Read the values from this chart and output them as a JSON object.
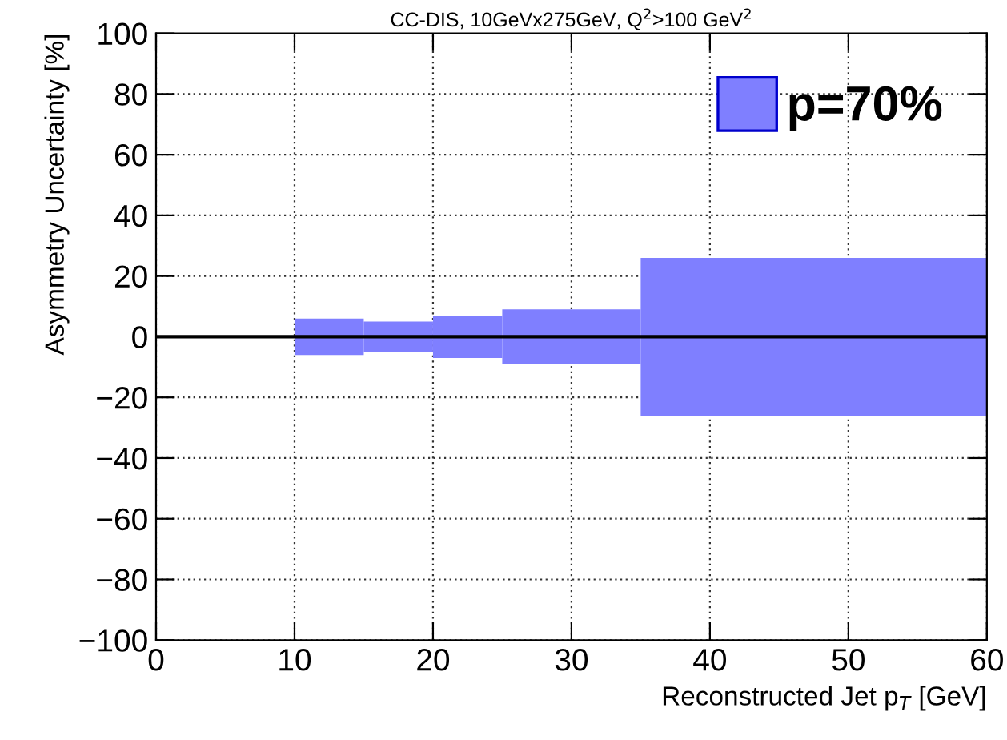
{
  "chart_data": {
    "type": "histogram",
    "title": "CC-DIS, 10GeVx275GeV, Q$^{2}$>100 GeV$^{2}$",
    "xlabel": "Reconstructed Jet p$_{T}$ [GeV]",
    "ylabel": "Asymmetry Uncertainty [%]",
    "bins": [
      10,
      15,
      20,
      25,
      35,
      60
    ],
    "series": [
      {
        "name": "p=70%",
        "color": "#7f7fff",
        "values": [
          12,
          10,
          14,
          18,
          52
        ],
        "base": [
          -6,
          -5,
          -7,
          -9,
          -26
        ]
      }
    ],
    "ref_lines": [
      {
        "axis": "y",
        "value": 0,
        "label": null,
        "color": "#000000"
      }
    ],
    "xlim": [
      0,
      60
    ],
    "ylim": [
      -100,
      100
    ],
    "xticks": [
      0,
      10,
      20,
      30,
      40,
      50,
      60
    ],
    "yticks": [
      {
        "value": -100,
        "label": "−100"
      },
      {
        "value": -80,
        "label": "−80"
      },
      {
        "value": -60,
        "label": "−60"
      },
      {
        "value": -40,
        "label": "−40"
      },
      {
        "value": -20,
        "label": "−20"
      },
      0,
      20,
      40,
      60,
      80,
      100
    ],
    "grid": true,
    "legend": "top right"
  }
}
